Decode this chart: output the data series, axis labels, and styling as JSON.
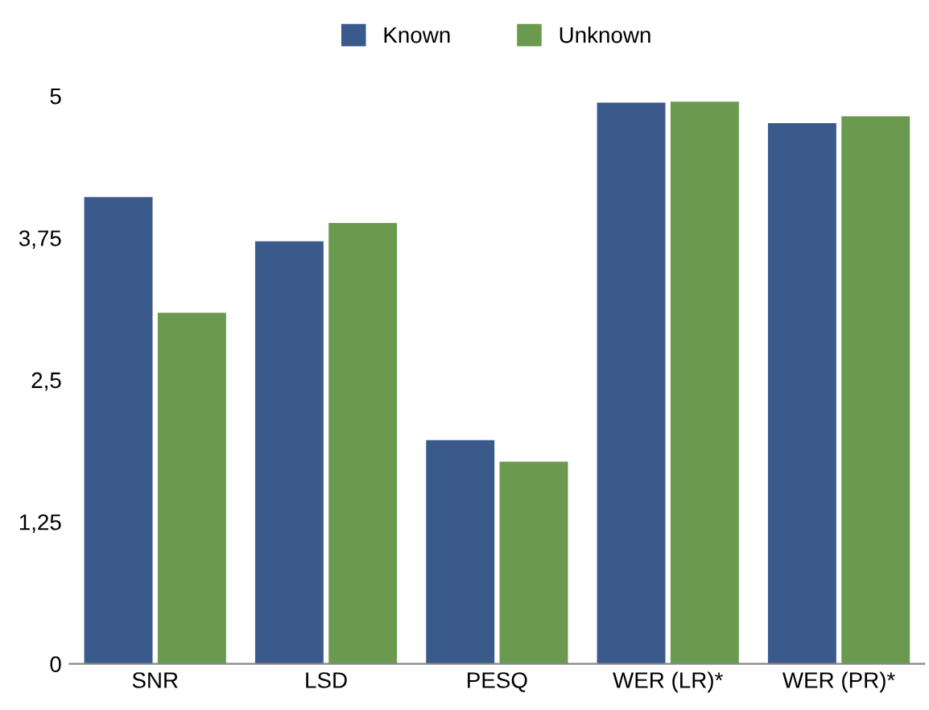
{
  "chart_data": {
    "type": "bar",
    "categories": [
      "SNR",
      "LSD",
      "PESQ",
      "WER (LR)*",
      "WER (PR)*"
    ],
    "series": [
      {
        "name": "Known",
        "color": "#3b5a8c",
        "values": [
          4.11,
          3.72,
          1.97,
          4.94,
          4.76
        ]
      },
      {
        "name": "Unknown",
        "color": "#6a9a50",
        "values": [
          3.09,
          3.88,
          1.78,
          4.95,
          4.82
        ]
      }
    ],
    "ylim": [
      0,
      5
    ],
    "yticks": [
      0,
      {
        "value": 1.25,
        "label": "1,25"
      },
      {
        "value": 2.5,
        "label": "2,5"
      },
      {
        "value": 3.75,
        "label": "3,75"
      },
      5
    ],
    "grid": false,
    "legend": "top"
  }
}
